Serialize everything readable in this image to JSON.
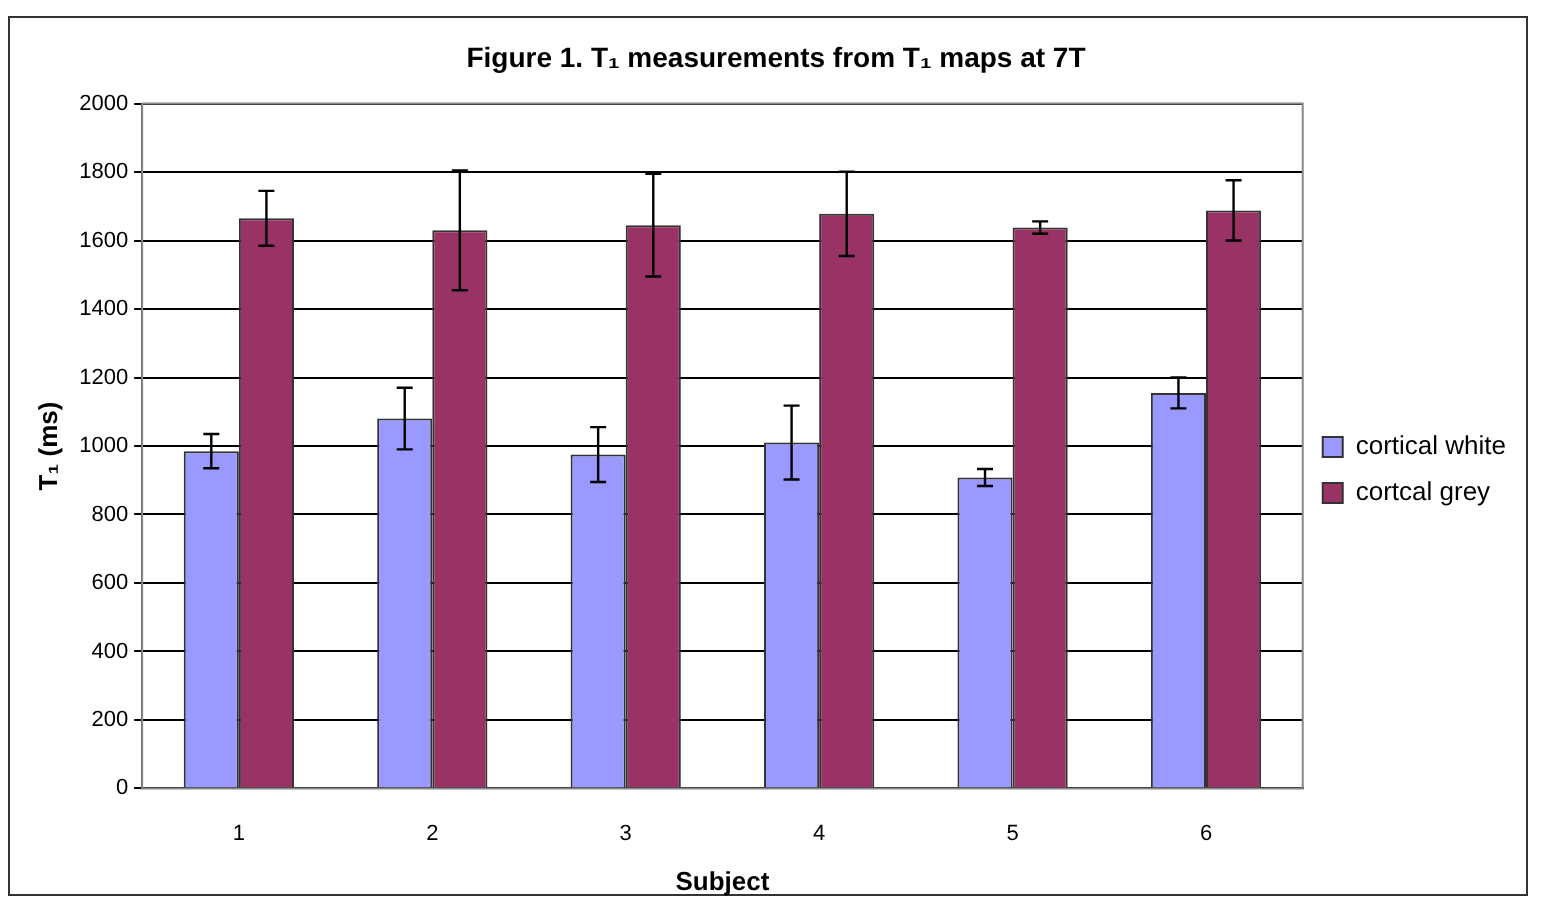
{
  "chart_data": {
    "type": "bar",
    "title": "Figure 1. T₁ measurements from T₁ maps at 7T",
    "xlabel": "Subject",
    "ylabel": "T₁ (ms)",
    "categories": [
      "1",
      "2",
      "3",
      "4",
      "5",
      "6"
    ],
    "series": [
      {
        "name": "cortical white",
        "color": "#9999ff",
        "values": [
          985,
          1080,
          975,
          1010,
          908,
          1155
        ],
        "errors": [
          50,
          90,
          80,
          108,
          25,
          45
        ]
      },
      {
        "name": "cortcal grey",
        "color": "#993366",
        "values": [
          1665,
          1630,
          1645,
          1678,
          1638,
          1688
        ],
        "errors": [
          80,
          175,
          150,
          123,
          18,
          88
        ]
      }
    ],
    "ylim": [
      0,
      2000
    ],
    "yticks": [
      0,
      200,
      400,
      600,
      800,
      1000,
      1200,
      1400,
      1600,
      1800,
      2000
    ],
    "grid": "y",
    "legend": "right"
  }
}
